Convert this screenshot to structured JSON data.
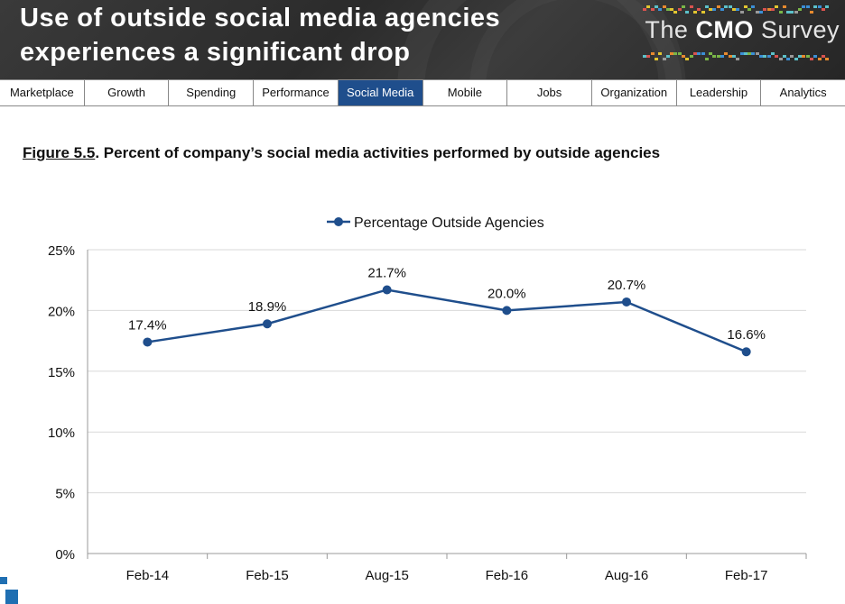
{
  "header": {
    "title_line1": "Use of outside social media agencies",
    "title_line2": "experiences a significant drop",
    "logo_prefix": "The",
    "logo_bold": "CMO",
    "logo_suffix": "Survey"
  },
  "nav": {
    "tabs": [
      {
        "label": "Marketplace"
      },
      {
        "label": "Growth"
      },
      {
        "label": "Spending"
      },
      {
        "label": "Performance"
      },
      {
        "label": "Social Media",
        "active": true
      },
      {
        "label": "Mobile"
      },
      {
        "label": "Jobs"
      },
      {
        "label": "Organization"
      },
      {
        "label": "Leadership"
      },
      {
        "label": "Analytics"
      }
    ]
  },
  "figure": {
    "number": "Figure 5.5",
    "separator": ".",
    "caption": "Percent of company’s social media activities performed by outside agencies"
  },
  "chart_data": {
    "type": "line",
    "categories": [
      "Feb-14",
      "Feb-15",
      "Aug-15",
      "Feb-16",
      "Aug-16",
      "Feb-17"
    ],
    "series": [
      {
        "name": "Percentage Outside Agencies",
        "values": [
          17.4,
          18.9,
          21.7,
          20.0,
          20.7,
          16.6
        ],
        "labels": [
          "17.4%",
          "18.9%",
          "21.7%",
          "20.0%",
          "20.7%",
          "16.6%"
        ],
        "color": "#1f4e8c"
      }
    ],
    "ylim": [
      0,
      25
    ],
    "yticks": [
      0,
      5,
      10,
      15,
      20,
      25
    ],
    "ytick_labels": [
      "0%",
      "5%",
      "10%",
      "15%",
      "20%",
      "25%"
    ],
    "grid": true,
    "legend_position": "top-center"
  },
  "colors": {
    "accent": "#1f4e8c",
    "header_bg": "#2e2e2e",
    "grid": "#d9d9d9"
  }
}
